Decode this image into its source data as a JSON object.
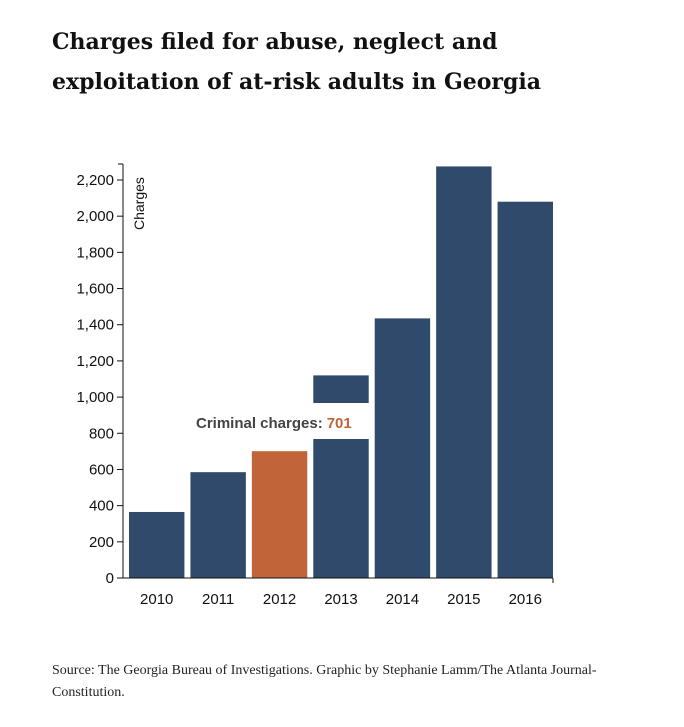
{
  "title": "Charges filed for abuse, neglect and exploitation of at-risk adults in Georgia",
  "source": "Source: The Georgia Bureau of Investigations. Graphic by Stephanie Lamm/The Atlanta Journal-Constitution.",
  "colors": {
    "bar": "#2f4a6b",
    "highlight": "#c0653a",
    "axis": "#111111"
  },
  "tooltip": {
    "label": "Criminal charges:",
    "value": "701",
    "category": "2012"
  },
  "chart_data": {
    "type": "bar",
    "title": "Charges filed for abuse, neglect and exploitation of at-risk adults in Georgia",
    "xlabel": "",
    "ylabel": "Charges",
    "categories": [
      "2010",
      "2011",
      "2012",
      "2013",
      "2014",
      "2015",
      "2016"
    ],
    "values": [
      365,
      585,
      701,
      1120,
      1435,
      2275,
      2080
    ],
    "ylim": [
      0,
      2200
    ],
    "yticks": [
      0,
      200,
      400,
      600,
      800,
      1000,
      1200,
      1400,
      1600,
      1800,
      2000,
      2200
    ],
    "ytick_labels": [
      "0",
      "200",
      "400",
      "600",
      "800",
      "1,000",
      "1,200",
      "1,400",
      "1,600",
      "1,800",
      "2,000",
      "2,200"
    ],
    "highlighted_category": "2012",
    "grid": false,
    "legend": "none"
  }
}
